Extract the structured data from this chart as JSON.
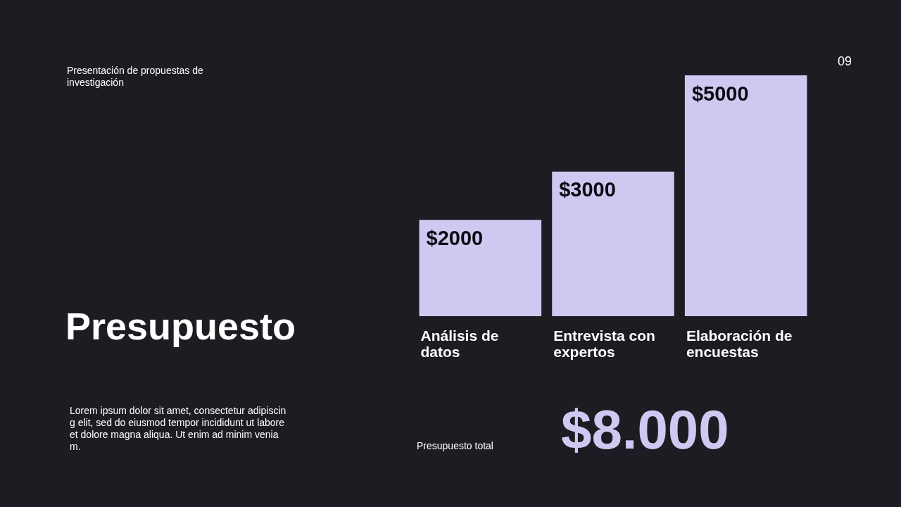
{
  "chart_data": {
    "type": "bar",
    "title": "Presupuesto",
    "subtitle": "Presentación de propuestas de investigación",
    "categories": [
      "Análisis de datos",
      "Entrevista con expertos",
      "Elaboración de encuestas"
    ],
    "values": [
      2000,
      3000,
      5000
    ],
    "color": "#d0c8f1",
    "value_labels": [
      "$2000",
      "$3000",
      "$5000"
    ],
    "annotations": [
      "09",
      "Lorem ipsum dolor sit amet, consectetur adipiscing elit, sed do eiusmod tempor incididunt ut labore et dolore magna aliqua. Ut enim ad minim veniam.",
      "Presupuesto total",
      "$8.000"
    ]
  }
}
